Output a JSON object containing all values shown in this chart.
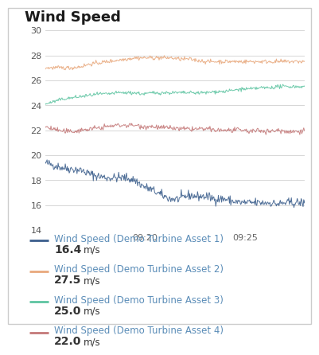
{
  "title": "Wind Speed",
  "title_fontsize": 13,
  "title_fontweight": "bold",
  "ylim": [
    14,
    30
  ],
  "yticks": [
    14,
    16,
    18,
    20,
    22,
    24,
    26,
    28,
    30
  ],
  "xtick_labels": [
    "09:20",
    "09:25"
  ],
  "x_tick_positions": [
    0.385,
    0.77
  ],
  "background_color": "#ffffff",
  "grid_color": "#d0d0d0",
  "series": [
    {
      "label": "Wind Speed (Demo Turbine Asset 1)",
      "value": "16.4",
      "color": "#3b5e8c",
      "noise": 0.18,
      "profile": [
        19.4,
        19.2,
        19.0,
        18.9,
        18.8,
        18.5,
        18.3,
        18.2,
        18.2,
        18.2,
        18.0,
        17.5,
        17.2,
        16.8,
        16.5,
        16.5,
        16.8,
        16.7,
        16.7,
        16.5,
        16.5,
        16.3,
        16.2,
        16.2,
        16.2,
        16.2,
        16.1,
        16.2,
        16.2,
        16.2
      ]
    },
    {
      "label": "Wind Speed (Demo Turbine Asset 2)",
      "value": "27.5",
      "color": "#e8a87c",
      "noise": 0.08,
      "profile": [
        27.0,
        27.0,
        27.0,
        27.0,
        27.1,
        27.3,
        27.4,
        27.5,
        27.6,
        27.7,
        27.8,
        27.8,
        27.8,
        27.8,
        27.8,
        27.7,
        27.7,
        27.6,
        27.5,
        27.5,
        27.5,
        27.5,
        27.5,
        27.5,
        27.5,
        27.5,
        27.5,
        27.5,
        27.5,
        27.5
      ]
    },
    {
      "label": "Wind Speed (Demo Turbine Asset 3)",
      "value": "25.0",
      "color": "#5dc4a1",
      "noise": 0.07,
      "profile": [
        24.1,
        24.3,
        24.5,
        24.6,
        24.7,
        24.8,
        24.9,
        24.9,
        25.0,
        25.0,
        25.0,
        24.9,
        25.0,
        25.0,
        25.0,
        25.0,
        25.0,
        25.0,
        25.0,
        25.1,
        25.1,
        25.2,
        25.3,
        25.3,
        25.4,
        25.4,
        25.5,
        25.5,
        25.5,
        25.5
      ]
    },
    {
      "label": "Wind Speed (Demo Turbine Asset 4)",
      "value": "22.0",
      "color": "#c47878",
      "noise": 0.1,
      "profile": [
        22.3,
        22.1,
        21.9,
        21.9,
        22.0,
        22.1,
        22.2,
        22.3,
        22.4,
        22.4,
        22.4,
        22.3,
        22.3,
        22.2,
        22.2,
        22.1,
        22.1,
        22.1,
        22.1,
        22.0,
        22.0,
        22.0,
        22.0,
        21.9,
        22.0,
        21.9,
        22.0,
        21.9,
        21.9,
        22.0
      ]
    }
  ],
  "legend_text_color": "#5b8db8",
  "legend_value_color": "#333333",
  "legend_unit": "m/s",
  "legend_fontsize": 8.5,
  "legend_value_fontsize": 10
}
